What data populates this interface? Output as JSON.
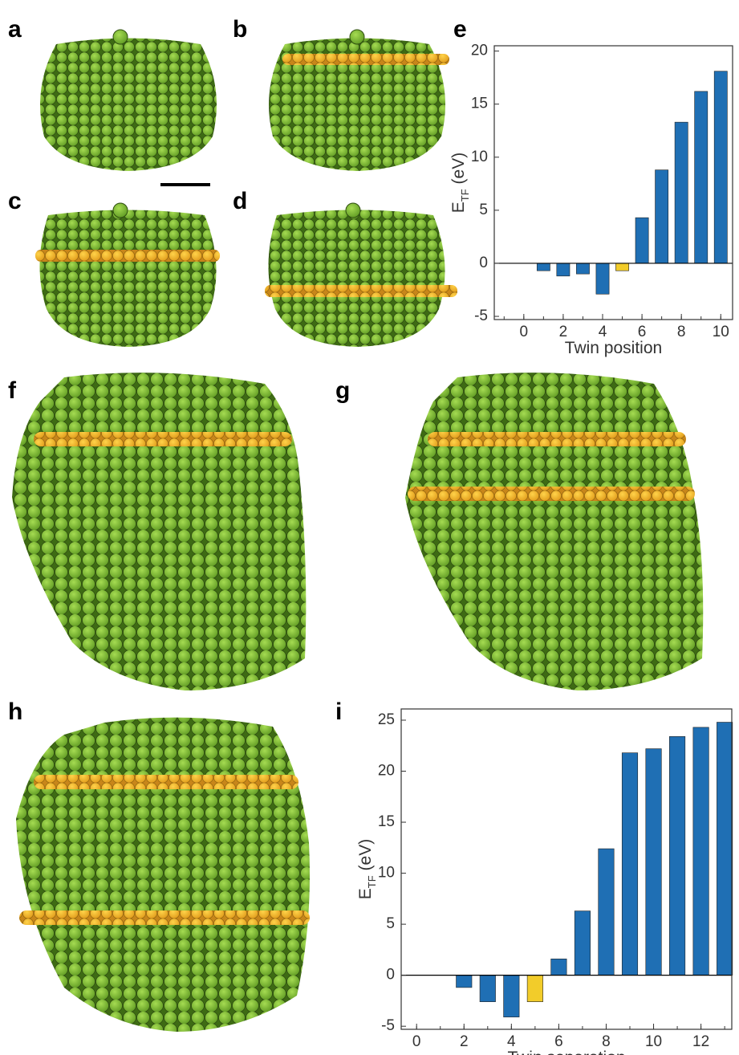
{
  "panel_labels": [
    "a",
    "b",
    "c",
    "d",
    "e",
    "f",
    "g",
    "h",
    "i"
  ],
  "chart_data": [
    {
      "type": "bar",
      "x_label": "Twin position",
      "y_label_parts": [
        "E",
        "TF",
        " (eV)"
      ],
      "x": [
        1,
        2,
        3,
        4,
        5,
        6,
        7,
        8,
        9,
        10
      ],
      "values": [
        -0.7,
        -1.2,
        -1.0,
        -2.9,
        -0.7,
        4.3,
        8.8,
        13.3,
        16.2,
        18.1
      ],
      "colors": [
        "#1f6fb4",
        "#1f6fb4",
        "#1f6fb4",
        "#1f6fb4",
        "#f2cc2a",
        "#1f6fb4",
        "#1f6fb4",
        "#1f6fb4",
        "#1f6fb4",
        "#1f6fb4"
      ],
      "xlim": [
        -1.5,
        10.6
      ],
      "xticks": [
        0,
        2,
        4,
        6,
        8,
        10
      ],
      "ylim": [
        -5.3,
        20.5
      ],
      "yticks": [
        -5,
        0,
        5,
        10,
        15,
        20
      ]
    },
    {
      "type": "bar",
      "x_label": "Twin separation",
      "y_label_parts": [
        "E",
        "TF",
        " (eV)"
      ],
      "x": [
        2,
        3,
        4,
        5,
        6,
        7,
        8,
        9,
        10,
        11,
        12,
        13
      ],
      "values": [
        -1.2,
        -2.6,
        -4.1,
        -2.6,
        1.6,
        6.3,
        12.4,
        21.8,
        22.2,
        23.4,
        24.3,
        24.8
      ],
      "colors": [
        "#1f6fb4",
        "#1f6fb4",
        "#1f6fb4",
        "#f2cc2a",
        "#1f6fb4",
        "#1f6fb4",
        "#1f6fb4",
        "#1f6fb4",
        "#1f6fb4",
        "#1f6fb4",
        "#1f6fb4",
        "#1f6fb4"
      ],
      "xlim": [
        -0.65,
        13.3
      ],
      "xticks": [
        0,
        2,
        4,
        6,
        8,
        10,
        12
      ],
      "ylim": [
        -5.3,
        26.1
      ],
      "yticks": [
        -5,
        0,
        5,
        10,
        15,
        20,
        25
      ]
    }
  ]
}
